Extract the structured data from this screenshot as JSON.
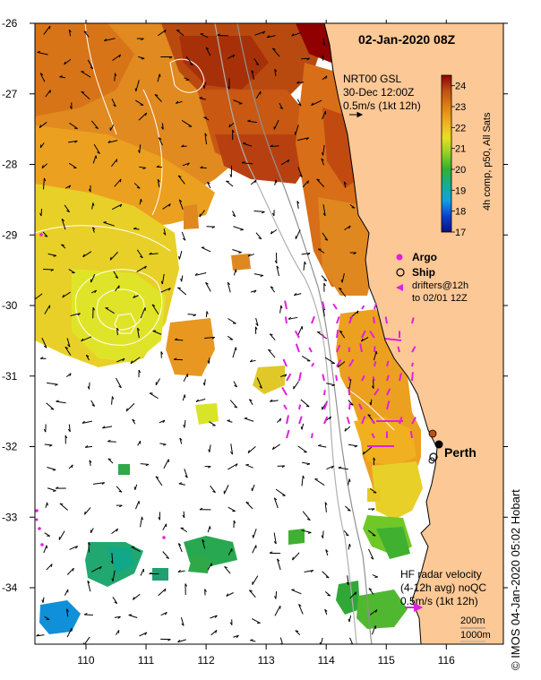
{
  "title": "02-Jan-2020 08Z",
  "gsl": {
    "line1": "NRT00 GSL",
    "line2": "30-Dec 12:00Z",
    "line3": "0.5m/s (1kt 12h)"
  },
  "colorbar": {
    "label": "4h comp, p50, All Sats",
    "ticks": [
      "24",
      "23",
      "22",
      "21",
      "20",
      "19",
      "18",
      "17"
    ],
    "min": 17,
    "max": 24.5,
    "colors": [
      "#0a1080",
      "#0a40d0",
      "#10a0e0",
      "#10b090",
      "#30b030",
      "#90d020",
      "#e8e020",
      "#f0b020",
      "#e08010",
      "#c05010",
      "#900000"
    ]
  },
  "legend": {
    "argo": "Argo",
    "ship": "Ship",
    "drifters1": "drifters@12h",
    "drifters2": "to 02/01 12Z",
    "argo_color": "#e020e0",
    "drifter_color": "#e020e0"
  },
  "hf": {
    "line1": "HF radar velocity",
    "line2": "(4-12h avg) noQC",
    "line3": "0.5m/s (1kt 12h)"
  },
  "depth": {
    "a": "200m",
    "b": "1000m"
  },
  "city": "Perth",
  "credit": "© IMOS 04-Jan-2020 05:02 Hobart",
  "axes": {
    "x_ticks": [
      "110",
      "111",
      "112",
      "113",
      "114",
      "115",
      "116"
    ],
    "y_ticks": [
      "-26",
      "-27",
      "-28",
      "-29",
      "-30",
      "-31",
      "-32",
      "-33",
      "-34"
    ]
  },
  "colors": {
    "land": "#fcc896",
    "ocean": "#ffffff",
    "hf_arrow": "#e020e0"
  }
}
